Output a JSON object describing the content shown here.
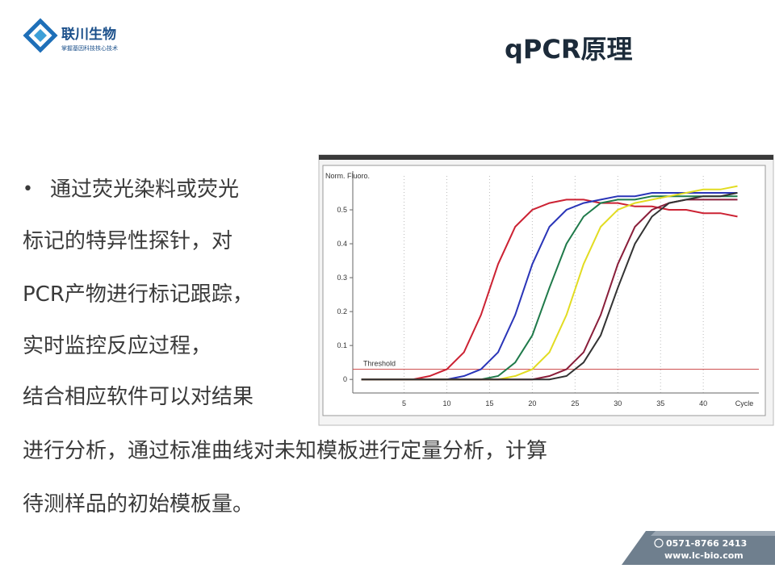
{
  "header": {
    "logo_name": "联川生物",
    "logo_slogan": "掌握基因科技核心技术",
    "title": "qPCR原理"
  },
  "body": {
    "lines": [
      "通过荧光染料或荧光",
      "标记的特异性探针，对",
      "PCR产物进行标记跟踪，",
      "实时监控反应过程，",
      "结合相应软件可以对结果",
      "进行分析，通过标准曲线对未知模板进行定量分析，计算",
      "待测样品的初始模板量。"
    ]
  },
  "footer": {
    "phone": "0571-8766 2413",
    "website": "www.lc-bio.com"
  },
  "chart_data": {
    "type": "line",
    "ylabel": "Norm. Fluoro.",
    "xlabel": "Cycle",
    "x": [
      0,
      2,
      4,
      6,
      8,
      10,
      12,
      14,
      16,
      18,
      20,
      22,
      24,
      26,
      28,
      30,
      32,
      34,
      36,
      38,
      40,
      42,
      44
    ],
    "xlim": [
      -1,
      46.5
    ],
    "ylim": [
      -0.04,
      0.6
    ],
    "xticks": [
      5,
      10,
      15,
      20,
      25,
      30,
      35,
      40
    ],
    "yticks": [
      0,
      0.1,
      0.2,
      0.3,
      0.4,
      0.5
    ],
    "grid": true,
    "threshold": {
      "label": "Threshold",
      "value": 0.03
    },
    "series": [
      {
        "color": "#cc2233",
        "values": [
          0,
          0,
          0,
          0,
          0.01,
          0.03,
          0.08,
          0.19,
          0.34,
          0.45,
          0.5,
          0.52,
          0.53,
          0.53,
          0.52,
          0.52,
          0.51,
          0.51,
          0.5,
          0.5,
          0.49,
          0.49,
          0.48
        ]
      },
      {
        "color": "#2a35b8",
        "values": [
          0,
          0,
          0,
          0,
          0,
          0,
          0.01,
          0.03,
          0.08,
          0.19,
          0.34,
          0.45,
          0.5,
          0.52,
          0.53,
          0.54,
          0.54,
          0.55,
          0.55,
          0.55,
          0.55,
          0.55,
          0.55
        ]
      },
      {
        "color": "#1f7a4a",
        "values": [
          0,
          0,
          0,
          0,
          0,
          0,
          0,
          0,
          0.01,
          0.05,
          0.13,
          0.27,
          0.4,
          0.48,
          0.52,
          0.53,
          0.53,
          0.54,
          0.54,
          0.54,
          0.54,
          0.54,
          0.54
        ]
      },
      {
        "color": "#e2dc22",
        "values": [
          0,
          0,
          0,
          0,
          0,
          0,
          0,
          0,
          0,
          0.01,
          0.03,
          0.08,
          0.19,
          0.34,
          0.45,
          0.5,
          0.52,
          0.53,
          0.54,
          0.55,
          0.56,
          0.56,
          0.57
        ]
      },
      {
        "color": "#8a1e3a",
        "values": [
          0,
          0,
          0,
          0,
          0,
          0,
          0,
          0,
          0,
          0,
          0,
          0.01,
          0.03,
          0.08,
          0.19,
          0.34,
          0.45,
          0.5,
          0.52,
          0.53,
          0.53,
          0.53,
          0.53
        ]
      },
      {
        "color": "#333333",
        "values": [
          0,
          0,
          0,
          0,
          0,
          0,
          0,
          0,
          0,
          0,
          0,
          0,
          0.01,
          0.05,
          0.13,
          0.27,
          0.4,
          0.48,
          0.52,
          0.53,
          0.54,
          0.54,
          0.55
        ]
      }
    ]
  }
}
